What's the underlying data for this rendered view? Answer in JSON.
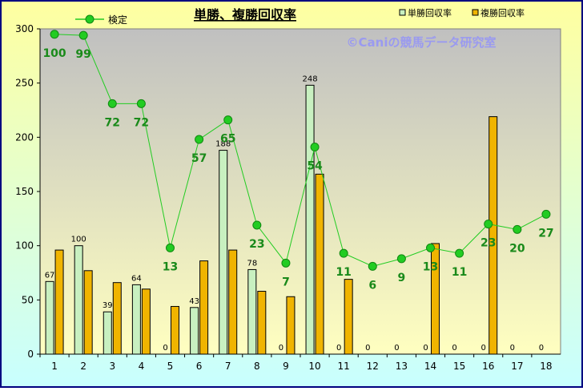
{
  "chart_data": {
    "type": "bar+line",
    "title": "単勝、複勝回収率",
    "watermark": "©Caniの競馬データ研究室",
    "categories": [
      "1",
      "2",
      "3",
      "4",
      "5",
      "6",
      "7",
      "8",
      "9",
      "10",
      "11",
      "12",
      "13",
      "14",
      "15",
      "16",
      "17",
      "18"
    ],
    "ylim": [
      0,
      300
    ],
    "yticks": [
      0,
      50,
      100,
      150,
      200,
      250,
      300
    ],
    "grid": false,
    "legend_position": "top",
    "series": [
      {
        "name": "単勝回収率",
        "kind": "bar",
        "color": "#c8f0c0",
        "values": [
          67,
          100,
          39,
          64,
          0,
          43,
          188,
          78,
          0,
          248,
          0,
          0,
          0,
          0,
          0,
          0,
          0,
          0
        ],
        "labels": [
          "67",
          "100",
          "39",
          "64",
          "0",
          "43",
          "188",
          "78",
          "0",
          "248",
          "0",
          "0",
          "0",
          "0",
          "0",
          "0",
          "0",
          "0"
        ]
      },
      {
        "name": "複勝回収率",
        "kind": "bar",
        "color": "#f0b400",
        "values": [
          96,
          77,
          66,
          60,
          44,
          86,
          96,
          58,
          53,
          166,
          69,
          0,
          0,
          102,
          0,
          219,
          0,
          0
        ]
      },
      {
        "name": "検定",
        "kind": "line",
        "color": "#22cc22",
        "values": [
          295,
          294,
          231,
          231,
          98,
          198,
          216,
          119,
          84,
          191,
          93,
          81,
          88,
          98,
          93,
          120,
          115,
          129
        ],
        "labels": [
          "100",
          "99",
          "72",
          "72",
          "13",
          "57",
          "65",
          "23",
          "7",
          "54",
          "11",
          "6",
          "9",
          "13",
          "11",
          "23",
          "20",
          "27"
        ]
      }
    ]
  },
  "colors": {
    "frame_border": "#000080",
    "outer_bg_top": "#ffffa0",
    "outer_bg_bottom": "#c8ffff",
    "plot_bg_top": "#c0c0c0",
    "plot_bg_bottom": "#ffffc0",
    "line_label": "#1a8a1a",
    "watermark": "#9a9af0"
  }
}
